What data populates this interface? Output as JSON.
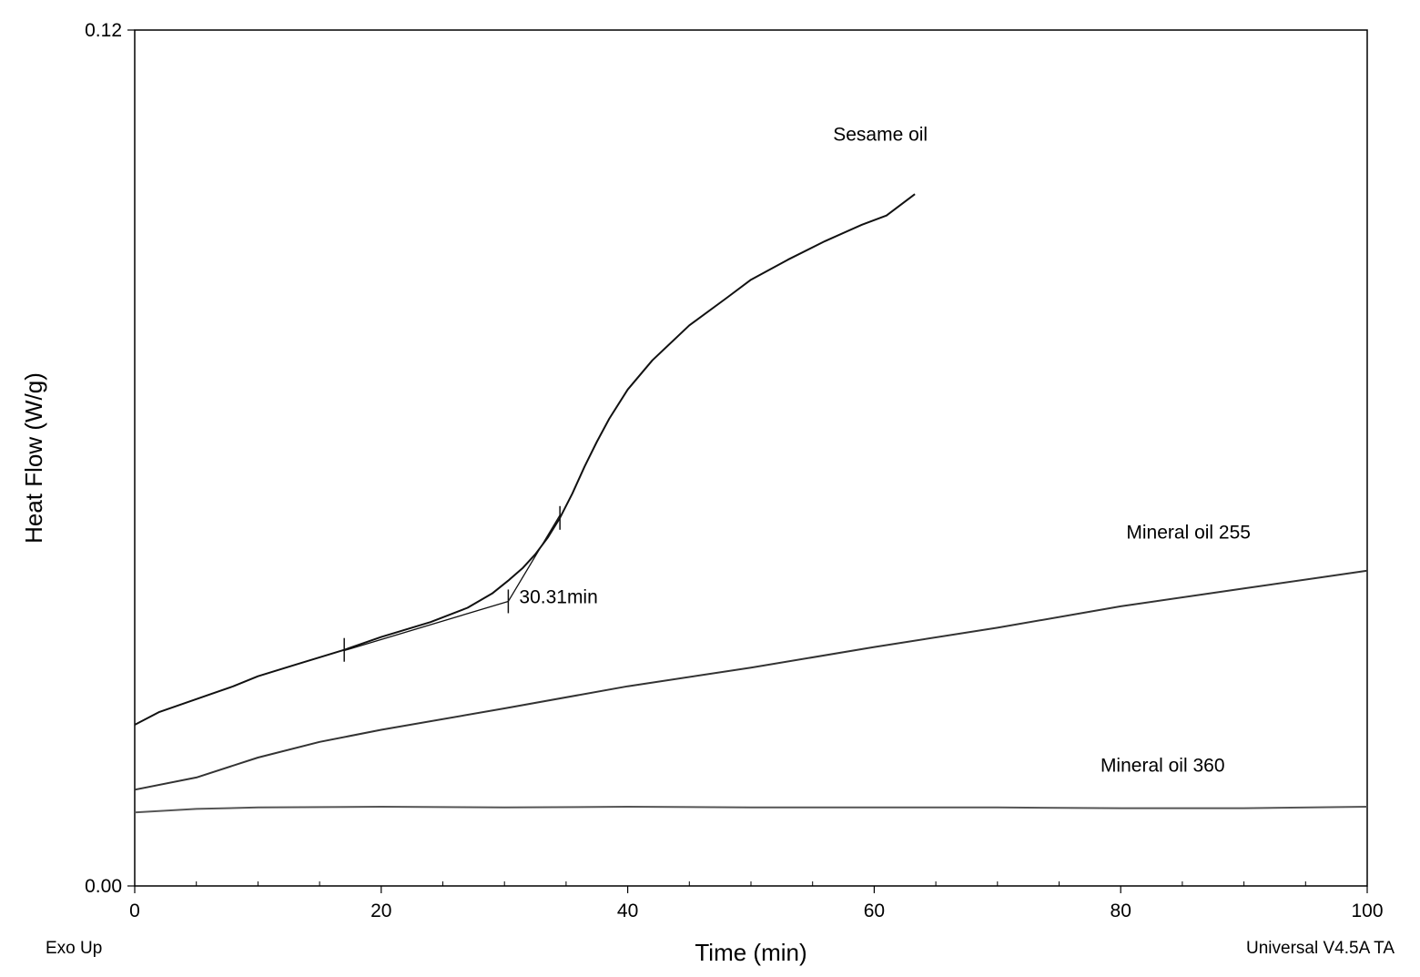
{
  "chart_data": {
    "type": "line",
    "xlabel": "Time (min)",
    "ylabel": "Heat Flow (W/g)",
    "xlim": [
      0,
      100
    ],
    "ylim": [
      0,
      0.12
    ],
    "x_ticks": [
      0,
      20,
      40,
      60,
      80,
      100
    ],
    "x_tick_labels": [
      "0",
      "20",
      "40",
      "60",
      "80",
      "100"
    ],
    "y_ticks": [
      0,
      0.12
    ],
    "y_tick_labels": [
      "0.00",
      "0.12"
    ],
    "grid": false,
    "series": [
      {
        "name": "Sesame oil",
        "color": "#111111",
        "x": [
          0,
          2,
          5,
          8,
          10,
          13,
          17,
          20,
          24,
          27,
          29,
          30.3,
          31.5,
          32.5,
          33.5,
          34.5,
          35.5,
          36.5,
          37.5,
          38.5,
          40,
          42,
          45,
          48,
          50,
          53,
          56,
          59,
          61,
          63.3
        ],
        "y": [
          0.0226,
          0.0244,
          0.0262,
          0.028,
          0.0294,
          0.031,
          0.0331,
          0.0349,
          0.037,
          0.039,
          0.041,
          0.0428,
          0.0446,
          0.0465,
          0.0488,
          0.0516,
          0.055,
          0.0588,
          0.0623,
          0.0655,
          0.0696,
          0.0737,
          0.0786,
          0.0824,
          0.085,
          0.0878,
          0.0904,
          0.0927,
          0.094,
          0.097
        ]
      },
      {
        "name": "Mineral oil 255",
        "color": "#333333",
        "x": [
          0,
          5,
          10,
          15,
          20,
          30,
          40,
          50,
          60,
          70,
          80,
          90,
          100
        ],
        "y": [
          0.0135,
          0.0152,
          0.018,
          0.0202,
          0.0219,
          0.0249,
          0.028,
          0.0306,
          0.0335,
          0.0362,
          0.0392,
          0.0417,
          0.0442
        ]
      },
      {
        "name": "Mineral oil 360",
        "color": "#555555",
        "x": [
          0,
          5,
          10,
          20,
          30,
          40,
          50,
          60,
          70,
          80,
          90,
          100
        ],
        "y": [
          0.0103,
          0.0108,
          0.011,
          0.0111,
          0.011,
          0.0111,
          0.011,
          0.011,
          0.011,
          0.0109,
          0.0109,
          0.0111
        ]
      }
    ],
    "onset": {
      "label": "30.31min",
      "x": 30.31,
      "y": 0.0399,
      "baseline_tangent": {
        "x": [
          17,
          30.31
        ],
        "y": [
          0.033,
          0.0399
        ]
      },
      "slope_tangent": {
        "x": [
          30.31,
          34.5
        ],
        "y": [
          0.0399,
          0.052
        ]
      },
      "tick_marks_x": [
        17,
        30.31,
        34.5
      ]
    },
    "annotations": [
      {
        "text": "Sesame oil",
        "x": 60.5,
        "y": 0.1045
      },
      {
        "text": "Mineral oil 255",
        "x": 85.5,
        "y": 0.0487
      },
      {
        "text": "Mineral oil 360",
        "x": 83.4,
        "y": 0.016
      }
    ],
    "footer_left": "Exo Up",
    "footer_right": "Universal V4.5A TA"
  }
}
